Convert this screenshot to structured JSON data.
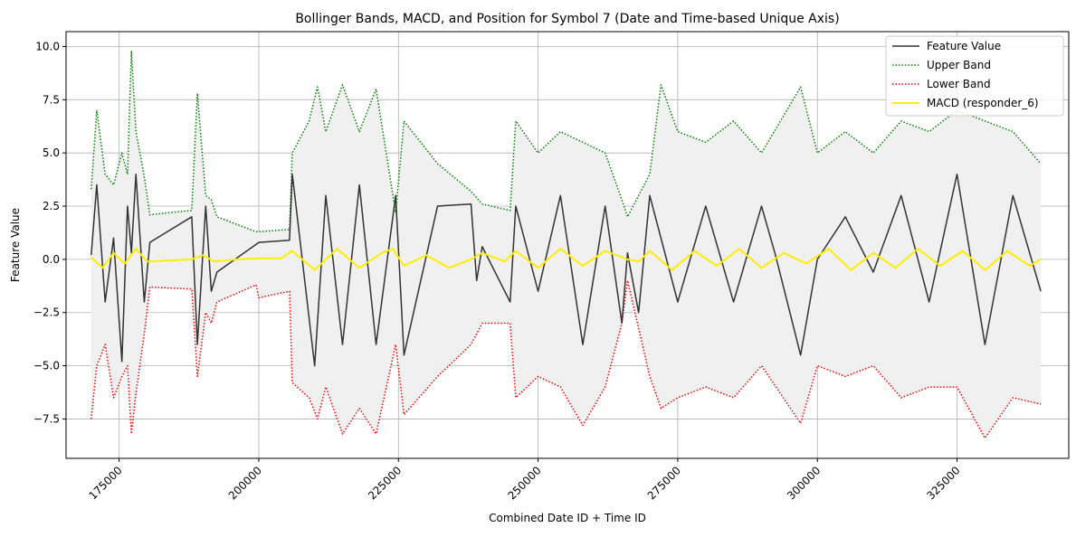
{
  "chart_data": {
    "type": "line",
    "title": "Bollinger Bands, MACD, and Position for Symbol 7 (Date and Time-based Unique Axis)",
    "xlabel": "Combined Date ID + Time ID",
    "ylabel": "Feature Value",
    "xlim": [
      165500,
      345000
    ],
    "ylim": [
      -9.35,
      10.7
    ],
    "grid": true,
    "legend_position": "top-right",
    "x_ticks": [
      175000,
      200000,
      225000,
      250000,
      275000,
      300000,
      325000
    ],
    "x_tick_labels": [
      "175000",
      "200000",
      "225000",
      "250000",
      "275000",
      "300000",
      "325000"
    ],
    "y_ticks": [
      -7.5,
      -5.0,
      -2.5,
      0.0,
      2.5,
      5.0,
      7.5,
      10.0
    ],
    "y_tick_labels": [
      "−7.5",
      "−5.0",
      "−2.5",
      "0.0",
      "2.5",
      "5.0",
      "7.5",
      "10.0"
    ],
    "band_fill_color": "#f0f0f0",
    "series": [
      {
        "name": "Feature Value",
        "color": "#333333",
        "style": "solid",
        "x": [
          170000,
          171000,
          172500,
          174000,
          175500,
          176500,
          177200,
          178000,
          179500,
          180500,
          188000,
          189000,
          190500,
          191500,
          192500,
          199500,
          200000,
          205500,
          206000,
          210000,
          212000,
          215000,
          218000,
          221000,
          224500,
          226000,
          232000,
          238000,
          239000,
          240000,
          245000,
          246000,
          250000,
          254000,
          258000,
          262000,
          265000,
          266000,
          268000,
          270000,
          275000,
          280000,
          285000,
          290000,
          292500,
          297000,
          300000,
          305000,
          310000,
          315000,
          320000,
          325000,
          330000,
          335000,
          340000
        ],
        "y": [
          0.2,
          3.5,
          -2.0,
          1.0,
          -4.8,
          2.5,
          0.3,
          4.0,
          -2.0,
          0.8,
          2.0,
          -4.0,
          2.5,
          -1.5,
          -0.6,
          0.7,
          0.8,
          0.9,
          4.0,
          -5.0,
          3.0,
          -4.0,
          3.5,
          -4.0,
          3.0,
          -4.5,
          2.5,
          2.6,
          -1.0,
          0.6,
          -2.0,
          2.5,
          -1.5,
          3.0,
          -4.0,
          2.5,
          -3.0,
          0.3,
          -2.5,
          3.0,
          -2.0,
          2.5,
          -2.0,
          2.5,
          0.2,
          -4.5,
          0.0,
          2.0,
          -0.6,
          3.0,
          -2.0,
          4.0,
          -4.0,
          3.0,
          -1.5
        ]
      },
      {
        "name": "Upper Band",
        "color": "#008000",
        "style": "dotted",
        "x": [
          170000,
          171000,
          172500,
          174000,
          175500,
          176500,
          177200,
          178000,
          179500,
          180500,
          188000,
          189000,
          190500,
          191500,
          192500,
          199500,
          200000,
          205500,
          206000,
          209000,
          210500,
          212000,
          215000,
          218000,
          221000,
          224500,
          226000,
          232000,
          238000,
          240000,
          245000,
          246000,
          250000,
          254000,
          258000,
          262000,
          265000,
          266000,
          270000,
          272000,
          275000,
          280000,
          285000,
          290000,
          297000,
          300000,
          305000,
          310000,
          315000,
          320000,
          325000,
          330000,
          335000,
          340000
        ],
        "y": [
          3.3,
          7.0,
          4.0,
          3.5,
          5.0,
          4.0,
          9.8,
          6.0,
          3.9,
          2.1,
          2.3,
          7.8,
          3.0,
          2.8,
          2.0,
          1.3,
          1.3,
          1.4,
          5.0,
          6.5,
          8.1,
          6.0,
          8.2,
          6.0,
          8.0,
          2.2,
          6.5,
          4.5,
          3.2,
          2.6,
          2.3,
          6.5,
          5.0,
          6.0,
          5.5,
          5.0,
          2.8,
          2.0,
          4.0,
          8.2,
          6.0,
          5.5,
          6.5,
          5.0,
          8.1,
          5.0,
          6.0,
          5.0,
          6.5,
          6.0,
          7.0,
          6.5,
          6.0,
          4.5
        ]
      },
      {
        "name": "Lower Band",
        "color": "#ff0000",
        "style": "dotted",
        "x": [
          170000,
          171000,
          172500,
          174000,
          175500,
          176500,
          177200,
          178000,
          179500,
          180500,
          188000,
          189000,
          190500,
          191500,
          192500,
          199500,
          200000,
          205500,
          206000,
          209000,
          210500,
          212000,
          215000,
          218000,
          221000,
          224500,
          226000,
          232000,
          238000,
          240000,
          245000,
          246000,
          250000,
          254000,
          258000,
          262000,
          265000,
          266000,
          270000,
          272000,
          275000,
          280000,
          285000,
          290000,
          297000,
          300000,
          305000,
          310000,
          315000,
          320000,
          325000,
          330000,
          335000,
          340000
        ],
        "y": [
          -7.5,
          -5.0,
          -4.0,
          -6.5,
          -5.5,
          -5.0,
          -8.2,
          -6.3,
          -3.5,
          -1.3,
          -1.4,
          -5.5,
          -2.5,
          -3.0,
          -2.0,
          -1.2,
          -1.8,
          -1.5,
          -5.8,
          -6.5,
          -7.5,
          -6.0,
          -8.2,
          -7.0,
          -8.2,
          -4.0,
          -7.3,
          -5.5,
          -4.0,
          -3.0,
          -3.0,
          -6.5,
          -5.5,
          -6.0,
          -7.8,
          -6.0,
          -3.0,
          -1.0,
          -5.5,
          -7.0,
          -6.5,
          -6.0,
          -6.5,
          -5.0,
          -7.7,
          -5.0,
          -5.5,
          -5.0,
          -6.5,
          -6.0,
          -6.0,
          -8.4,
          -6.5,
          -6.8
        ]
      },
      {
        "name": "MACD (responder_6)",
        "color": "#ffee00",
        "style": "solid",
        "x": [
          170000,
          172000,
          174000,
          176000,
          178000,
          180000,
          184000,
          188000,
          190000,
          192000,
          196000,
          200000,
          204000,
          206000,
          210000,
          214000,
          218000,
          222000,
          224000,
          226000,
          230000,
          234000,
          238000,
          240000,
          244000,
          246000,
          250000,
          254000,
          258000,
          262000,
          266000,
          268000,
          270000,
          274000,
          278000,
          282000,
          286000,
          290000,
          294000,
          298000,
          302000,
          306000,
          310000,
          314000,
          318000,
          322000,
          326000,
          330000,
          334000,
          338000,
          340000
        ],
        "y": [
          0.1,
          -0.4,
          0.3,
          -0.2,
          0.5,
          -0.1,
          -0.05,
          0.0,
          0.2,
          -0.1,
          0.0,
          0.05,
          0.05,
          0.4,
          -0.5,
          0.5,
          -0.4,
          0.3,
          0.5,
          -0.3,
          0.2,
          -0.4,
          0.0,
          0.3,
          -0.1,
          0.4,
          -0.4,
          0.5,
          -0.3,
          0.4,
          0.0,
          -0.1,
          0.4,
          -0.5,
          0.4,
          -0.3,
          0.5,
          -0.4,
          0.3,
          -0.2,
          0.5,
          -0.5,
          0.3,
          -0.4,
          0.5,
          -0.3,
          0.4,
          -0.5,
          0.4,
          -0.3,
          0.0
        ]
      }
    ]
  }
}
